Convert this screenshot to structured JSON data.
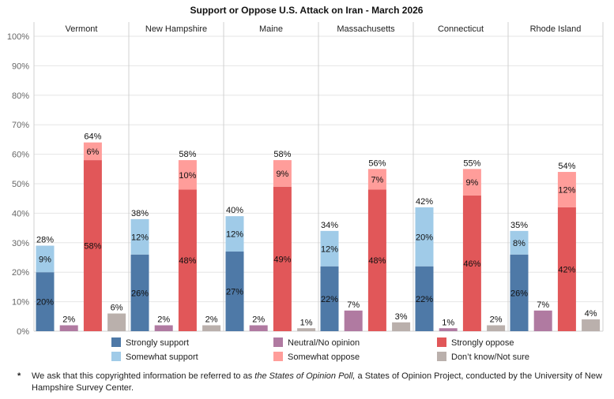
{
  "chart_data": {
    "type": "bar",
    "title": "Support or Oppose U.S. Attack on Iran - March 2026",
    "ylim": [
      0,
      100
    ],
    "y_ticks": [
      "0%",
      "10%",
      "20%",
      "30%",
      "40%",
      "50%",
      "60%",
      "70%",
      "80%",
      "90%",
      "100%"
    ],
    "grid": true,
    "panels": [
      "Vermont",
      "New Hampshire",
      "Maine",
      "Massachusetts",
      "Connecticut",
      "Rhode Island"
    ],
    "bar_groups": [
      "Support",
      "Neutral/No opinion",
      "Oppose",
      "Don't know/Not sure"
    ],
    "series": [
      {
        "name": "Strongly support",
        "group": "Support",
        "color": "#4e79a7",
        "values": [
          20,
          26,
          27,
          22,
          22,
          26
        ],
        "labels": [
          "20%",
          "26%",
          "27%",
          "22%",
          "22%",
          "26%"
        ]
      },
      {
        "name": "Somewhat support",
        "group": "Support",
        "color": "#a0cbe8",
        "values": [
          9,
          12,
          12,
          12,
          20,
          8
        ],
        "labels": [
          "9%",
          "12%",
          "12%",
          "12%",
          "20%",
          "8%"
        ]
      },
      {
        "name": "Neutral/No opinion",
        "group": "Neutral/No opinion",
        "color": "#b07aa1",
        "values": [
          2,
          2,
          2,
          7,
          1,
          7
        ],
        "labels": [
          "2%",
          "2%",
          "2%",
          "7%",
          "1%",
          "7%"
        ]
      },
      {
        "name": "Strongly oppose",
        "group": "Oppose",
        "color": "#e15759",
        "values": [
          58,
          48,
          49,
          48,
          46,
          42
        ],
        "labels": [
          "58%",
          "48%",
          "49%",
          "48%",
          "46%",
          "42%"
        ]
      },
      {
        "name": "Somewhat oppose",
        "group": "Oppose",
        "color": "#ff9d9a",
        "values": [
          6,
          10,
          9,
          7,
          9,
          12
        ],
        "labels": [
          "6%",
          "10%",
          "9%",
          "7%",
          "9%",
          "12%"
        ]
      },
      {
        "name": "Don’t know/Not sure",
        "group": "Don't know/Not sure",
        "color": "#bab0ac",
        "values": [
          6,
          2,
          1,
          3,
          2,
          4
        ],
        "labels": [
          "6%",
          "2%",
          "1%",
          "3%",
          "2%",
          "4%"
        ]
      }
    ],
    "totals": {
      "Support": [
        "28%",
        "38%",
        "40%",
        "34%",
        "42%",
        "35%"
      ],
      "Oppose": [
        "64%",
        "58%",
        "58%",
        "56%",
        "55%",
        "54%"
      ]
    },
    "legend": [
      "Strongly support",
      "Somewhat support",
      "Neutral/No opinion",
      "Somewhat oppose",
      "Strongly oppose",
      "Don’t know/Not sure"
    ]
  },
  "colors": {
    "grid": "#e6e6e6",
    "panel_divider": "#d0d0d0",
    "axis_text": "#666666"
  },
  "footnote": {
    "marker": "*",
    "prefix": "We ask that this copyrighted information be referred to as ",
    "italic": "the States of Opinion Poll,",
    "suffix": " a States of Opinion Project, conducted by the University of New Hampshire Survey Center."
  }
}
